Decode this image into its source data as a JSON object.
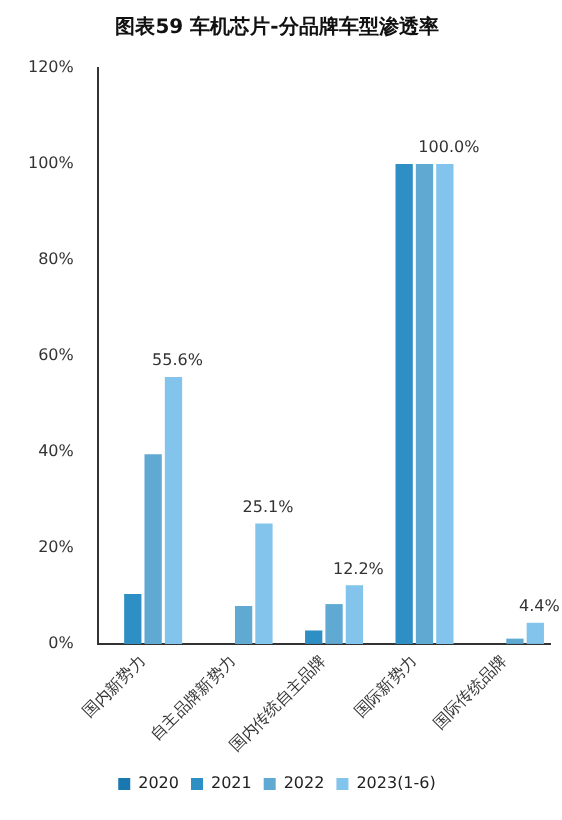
{
  "chart_data": {
    "type": "bar",
    "title": "图表59 车机芯片-分品牌车型渗透率",
    "categories": [
      "国内新势力",
      "自主品牌新势力",
      "国内传统自主品牌",
      "国际新势力",
      "国际传统品牌"
    ],
    "series": [
      {
        "name": "2020",
        "color": "#1a78b0",
        "values": [
          null,
          null,
          null,
          null,
          null
        ]
      },
      {
        "name": "2021",
        "color": "#2e8fc4",
        "values": [
          10.4,
          null,
          2.8,
          100,
          null
        ]
      },
      {
        "name": "2022",
        "color": "#60a9d2",
        "values": [
          39.5,
          7.9,
          8.3,
          100,
          1.1
        ]
      },
      {
        "name": "2023(1-6)",
        "color": "#82c4ec",
        "values": [
          55.6,
          25.1,
          12.2,
          100,
          4.4
        ],
        "value_labels": [
          "55.6%",
          "25.1%",
          "12.2%",
          "100.0%",
          "4.4%"
        ]
      }
    ],
    "ylim": [
      0,
      120
    ],
    "yticks": [
      {
        "value": 0,
        "label": "0%"
      },
      {
        "value": 20,
        "label": "20%"
      },
      {
        "value": 40,
        "label": "40%"
      },
      {
        "value": 60,
        "label": "60%"
      },
      {
        "value": 80,
        "label": "80%"
      },
      {
        "value": 100,
        "label": "100%"
      },
      {
        "value": 120,
        "label": "120%"
      }
    ],
    "grid": false,
    "legend": "bottom"
  }
}
